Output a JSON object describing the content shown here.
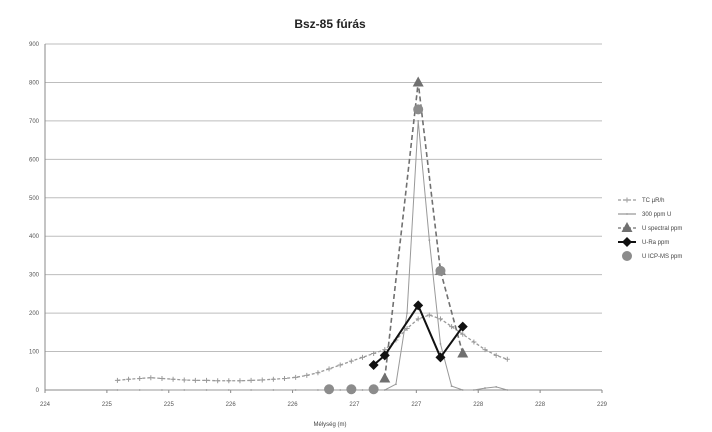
{
  "chart_data": {
    "type": "line",
    "title": "Bsz-85 fúrás",
    "xlabel": "Mélység (m)",
    "ylabel": "",
    "xlim": [
      224,
      229
    ],
    "ylim": [
      0,
      900
    ],
    "x_ticks": [
      "224",
      "225",
      "225",
      "226",
      "226",
      "227",
      "227",
      "228",
      "228",
      "229"
    ],
    "y_ticks": [
      "0",
      "100",
      "200",
      "300",
      "400",
      "500",
      "600",
      "700",
      "800",
      "900"
    ],
    "grid": "horizontal",
    "legend_position": "right",
    "series": [
      {
        "name": "TC µR/h",
        "color": "#9a9a9a",
        "style": "dashed-line-plus",
        "x": [
          224.65,
          224.75,
          224.85,
          224.95,
          225.05,
          225.15,
          225.25,
          225.35,
          225.45,
          225.55,
          225.65,
          225.75,
          225.85,
          225.95,
          226.05,
          226.15,
          226.25,
          226.35,
          226.45,
          226.55,
          226.65,
          226.75,
          226.85,
          226.95,
          227.05,
          227.15,
          227.25,
          227.35,
          227.45,
          227.55,
          227.65,
          227.75,
          227.85,
          227.95,
          228.05,
          228.15
        ],
        "y": [
          25,
          28,
          30,
          32,
          30,
          28,
          26,
          25,
          25,
          24,
          24,
          24,
          25,
          26,
          28,
          30,
          33,
          38,
          45,
          55,
          65,
          75,
          85,
          95,
          105,
          130,
          160,
          185,
          195,
          185,
          165,
          145,
          125,
          105,
          90,
          80
        ]
      },
      {
        "name": "300 ppm U",
        "color": "#999999",
        "style": "solid-thin",
        "x": [
          224.65,
          224.85,
          225.05,
          225.25,
          225.45,
          225.65,
          225.85,
          226.05,
          226.25,
          226.45,
          226.65,
          226.85,
          227.05,
          227.15,
          227.25,
          227.35,
          227.45,
          227.55,
          227.65,
          227.75,
          227.85,
          227.95,
          228.05,
          228.15
        ],
        "y": [
          0,
          0,
          0,
          0,
          0,
          0,
          0,
          0,
          0,
          0,
          0,
          0,
          0,
          15,
          200,
          700,
          390,
          120,
          10,
          0,
          0,
          5,
          8,
          0
        ]
      },
      {
        "name": "U spectral ppm",
        "color": "#707070",
        "style": "dashed-triangle",
        "x": [
          227.05,
          227.35,
          227.55,
          227.75
        ],
        "y": [
          30,
          800,
          310,
          95
        ]
      },
      {
        "name": "U-Ra  ppm",
        "color": "#111111",
        "style": "solid-diamond",
        "x": [
          226.95,
          227.05,
          227.35,
          227.55,
          227.75
        ],
        "y": [
          65,
          90,
          220,
          85,
          165
        ]
      },
      {
        "name": "U ICP-MS ppm",
        "color": "#8c8c8c",
        "style": "circle",
        "x": [
          226.55,
          226.75,
          226.95,
          227.35,
          227.55
        ],
        "y": [
          2,
          2,
          2,
          730,
          310
        ]
      }
    ]
  }
}
